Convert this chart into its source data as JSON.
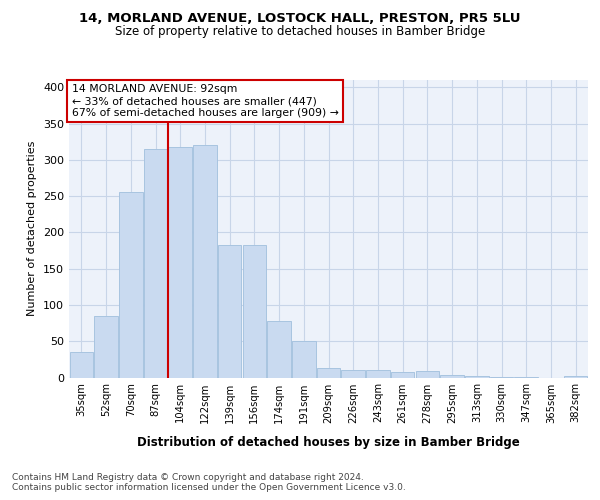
{
  "title": "14, MORLAND AVENUE, LOSTOCK HALL, PRESTON, PR5 5LU",
  "subtitle": "Size of property relative to detached houses in Bamber Bridge",
  "xlabel": "Distribution of detached houses by size in Bamber Bridge",
  "ylabel": "Number of detached properties",
  "bar_labels": [
    "35sqm",
    "52sqm",
    "70sqm",
    "87sqm",
    "104sqm",
    "122sqm",
    "139sqm",
    "156sqm",
    "174sqm",
    "191sqm",
    "209sqm",
    "226sqm",
    "243sqm",
    "261sqm",
    "278sqm",
    "295sqm",
    "313sqm",
    "330sqm",
    "347sqm",
    "365sqm",
    "382sqm"
  ],
  "bar_values": [
    35,
    85,
    255,
    315,
    318,
    320,
    182,
    182,
    78,
    50,
    13,
    11,
    11,
    7,
    9,
    4,
    2,
    1,
    1,
    0,
    2
  ],
  "bar_color": "#c9daf0",
  "bar_edge_color": "#a8c4e0",
  "grid_color": "#c8d5e8",
  "bg_color": "#edf2fa",
  "vline_x": 3.5,
  "vline_color": "#cc0000",
  "annotation_line1": "14 MORLAND AVENUE: 92sqm",
  "annotation_line2": "← 33% of detached houses are smaller (447)",
  "annotation_line3": "67% of semi-detached houses are larger (909) →",
  "annotation_box_color": "#ffffff",
  "annotation_box_edge": "#cc0000",
  "footer_text": "Contains HM Land Registry data © Crown copyright and database right 2024.\nContains public sector information licensed under the Open Government Licence v3.0.",
  "ylim": [
    0,
    410
  ],
  "yticks": [
    0,
    50,
    100,
    150,
    200,
    250,
    300,
    350,
    400
  ]
}
